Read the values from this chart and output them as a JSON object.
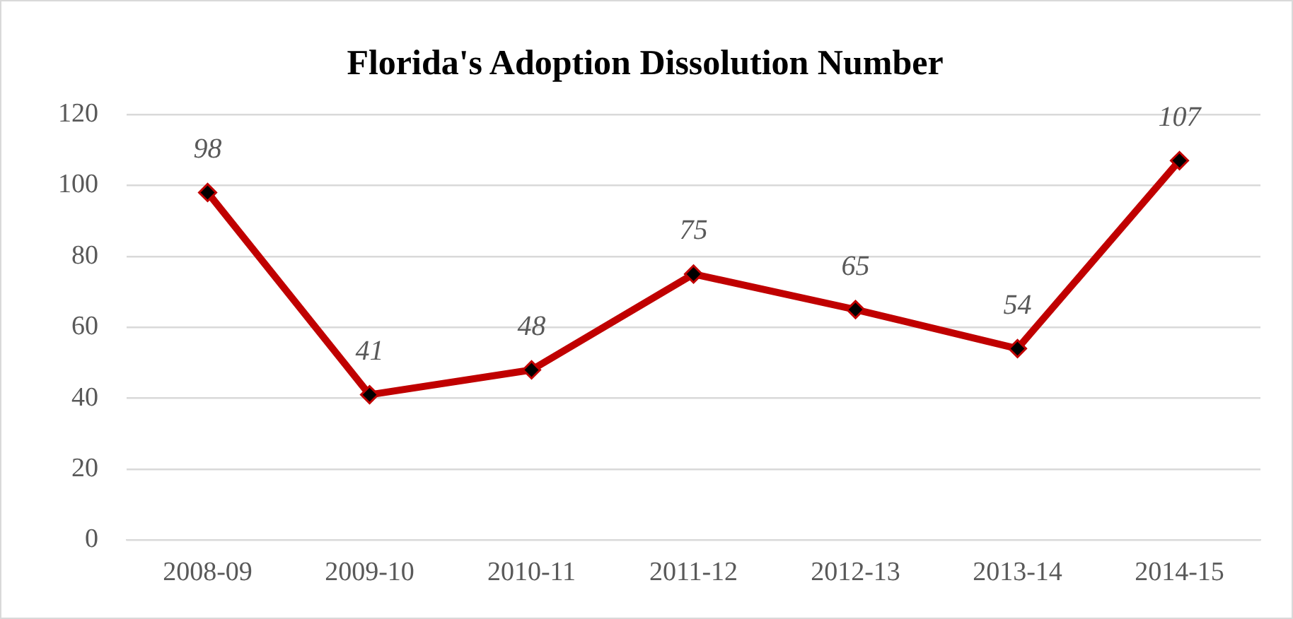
{
  "chart_data": {
    "type": "line",
    "title": "Florida's Adoption Dissolution Number",
    "categories": [
      "2008-09",
      "2009-10",
      "2010-11",
      "2011-12",
      "2012-13",
      "2013-14",
      "2014-15"
    ],
    "series": [
      {
        "color": "#c00000",
        "values": [
          98,
          41,
          48,
          75,
          65,
          54,
          107
        ]
      }
    ],
    "ylim": [
      0,
      120
    ],
    "yticks": [
      0,
      20,
      40,
      60,
      80,
      100,
      120
    ],
    "grid": "y",
    "marker": "diamond",
    "line_style": "solid",
    "data_labels": true
  }
}
